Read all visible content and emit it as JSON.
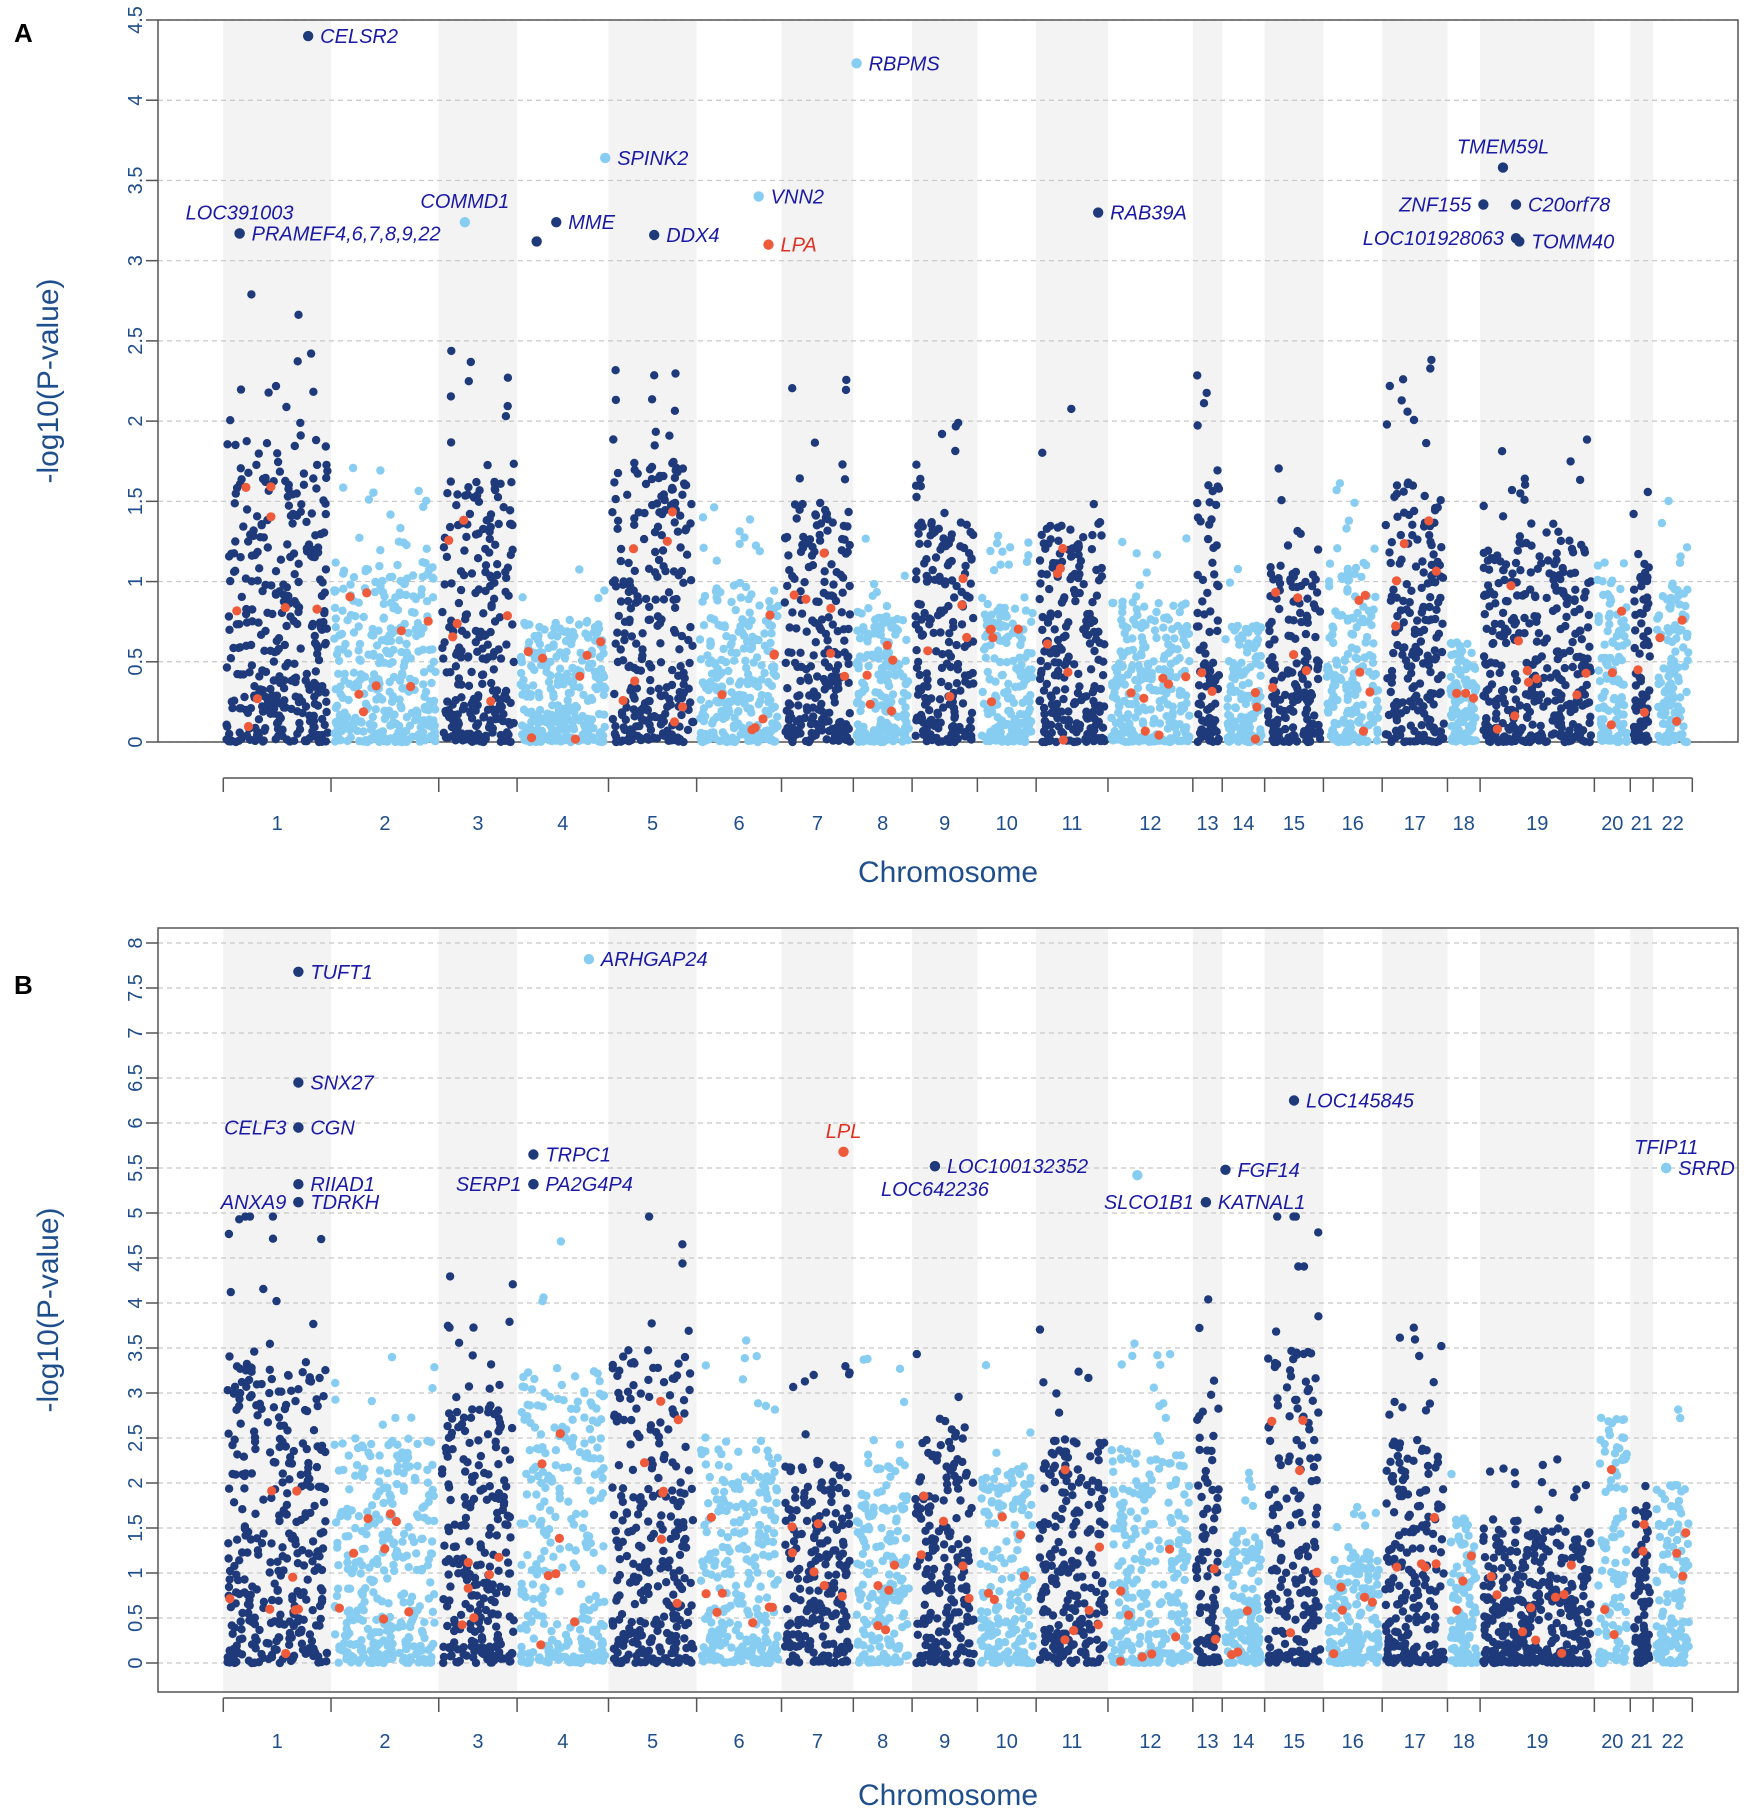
{
  "colors": {
    "dark": "#1f3a7a",
    "light": "#87cdf2",
    "highlight": "#ee5a3a",
    "label_blue": "#1a1aa6",
    "label_red": "#e03020",
    "axis_text": "#1f4e8c",
    "band": "#f3f3f3",
    "grid": "#c8c8c8"
  },
  "chart_data": [
    {
      "type": "scatter",
      "panel": "A",
      "xlabel": "Chromosome",
      "ylabel": "-log10(P-value)",
      "ylim": [
        0,
        4.5
      ],
      "yticks": [
        "0",
        "0.5",
        "1",
        "1.5",
        "2",
        "2.5",
        "3",
        "3.5",
        "4",
        "4.5"
      ],
      "grid": true,
      "chromosomes": [
        "1",
        "2",
        "3",
        "4",
        "5",
        "6",
        "7",
        "8",
        "9",
        "10",
        "11",
        "12",
        "13",
        "14",
        "15",
        "16",
        "17",
        "18",
        "19",
        "20",
        "21",
        "22"
      ],
      "chrom_ranges": [
        [
          1,
          2.65
        ],
        [
          2.65,
          4.3
        ],
        [
          4.3,
          5.5
        ],
        [
          5.5,
          6.9
        ],
        [
          6.9,
          8.25
        ],
        [
          8.25,
          9.55
        ],
        [
          9.55,
          10.65
        ],
        [
          10.65,
          11.55
        ],
        [
          11.55,
          12.55
        ],
        [
          12.55,
          13.45
        ],
        [
          13.45,
          14.55
        ],
        [
          14.55,
          15.85
        ],
        [
          15.85,
          16.3
        ],
        [
          16.3,
          16.95
        ],
        [
          16.95,
          17.85
        ],
        [
          17.85,
          18.75
        ],
        [
          18.75,
          19.75
        ],
        [
          19.75,
          20.25
        ],
        [
          20.25,
          22.0
        ],
        [
          22.0,
          22.55
        ],
        [
          22.55,
          22.9
        ],
        [
          22.9,
          23.5
        ]
      ],
      "tick_positions": [
        1,
        2.65,
        4.3,
        5.5,
        6.9,
        8.25,
        9.55,
        10.65,
        11.55,
        12.55,
        13.45,
        14.55,
        15.85,
        16.3,
        16.95,
        17.85,
        18.75,
        19.75,
        20.25,
        22.0,
        22.55,
        22.9,
        23.5
      ],
      "cluster_levels": [
        1.5,
        0.9,
        1.3,
        0.6,
        1.4,
        0.8,
        1.2,
        0.7,
        1.1,
        0.7,
        1.1,
        0.7,
        1.3,
        0.6,
        0.9,
        0.9,
        1.3,
        0.5,
        1.0,
        0.9,
        0.9,
        0.8
      ],
      "annotations": [
        {
          "gene": "CELSR2",
          "x": 2.3,
          "y": 4.4,
          "color": "dark",
          "label_color": "blue",
          "anchor": "right"
        },
        {
          "gene": "RBPMS",
          "x": 10.7,
          "y": 4.23,
          "color": "light",
          "label_color": "blue",
          "anchor": "right"
        },
        {
          "gene": "SPINK2",
          "x": 6.85,
          "y": 3.64,
          "color": "light",
          "label_color": "blue",
          "anchor": "right"
        },
        {
          "gene": "VNN2",
          "x": 9.2,
          "y": 3.4,
          "color": "light",
          "label_color": "blue",
          "anchor": "right"
        },
        {
          "gene": "LPA",
          "x": 9.35,
          "y": 3.1,
          "color": "highlight",
          "label_color": "red",
          "anchor": "right"
        },
        {
          "gene": "MME",
          "x": 6.1,
          "y": 3.24,
          "color": "dark",
          "label_color": "blue",
          "anchor": "right"
        },
        {
          "gene": "",
          "x": 5.8,
          "y": 3.12,
          "color": "dark",
          "label_color": "blue",
          "anchor": "right"
        },
        {
          "gene": "DDX4",
          "x": 7.6,
          "y": 3.16,
          "color": "dark",
          "label_color": "blue",
          "anchor": "right"
        },
        {
          "gene": "COMMD1",
          "x": 4.7,
          "y": 3.24,
          "color": "light",
          "label_color": "blue",
          "anchor": "above"
        },
        {
          "gene": "LOC391003",
          "x": 1.25,
          "y": 3.17,
          "color": "dark",
          "label_color": "blue",
          "anchor": "above"
        },
        {
          "gene": "PRAMEF4,6,7,8,9,22",
          "x": 1.25,
          "y": 3.17,
          "color": "dark",
          "label_color": "blue",
          "anchor": "right"
        },
        {
          "gene": "RAB39A",
          "x": 14.4,
          "y": 3.3,
          "color": "dark",
          "label_color": "blue",
          "anchor": "right"
        },
        {
          "gene": "TMEM59L",
          "x": 20.6,
          "y": 3.58,
          "color": "dark",
          "label_color": "blue",
          "anchor": "above"
        },
        {
          "gene": "ZNF155",
          "x": 20.3,
          "y": 3.35,
          "color": "dark",
          "label_color": "blue",
          "anchor": "left"
        },
        {
          "gene": "C20orf78",
          "x": 20.8,
          "y": 3.35,
          "color": "dark",
          "label_color": "blue",
          "anchor": "right"
        },
        {
          "gene": "LOC101928063",
          "x": 20.8,
          "y": 3.14,
          "color": "dark",
          "label_color": "blue",
          "anchor": "left"
        },
        {
          "gene": "TOMM40",
          "x": 20.85,
          "y": 3.12,
          "color": "dark",
          "label_color": "blue",
          "anchor": "right"
        }
      ]
    },
    {
      "type": "scatter",
      "panel": "B",
      "xlabel": "Chromosome",
      "ylabel": "-log10(P-value)",
      "ylim": [
        0,
        8
      ],
      "yticks": [
        "0",
        "0.5",
        "1",
        "1.5",
        "2",
        "2.5",
        "3",
        "3.5",
        "4",
        "4.5",
        "5",
        "5.5",
        "6",
        "6.5",
        "7",
        "7.5",
        "8"
      ],
      "grid": true,
      "chromosomes": [
        "1",
        "2",
        "3",
        "4",
        "5",
        "6",
        "7",
        "8",
        "9",
        "10",
        "11",
        "12",
        "13",
        "14",
        "15",
        "16",
        "17",
        "18",
        "19",
        "20",
        "21",
        "22"
      ],
      "chrom_ranges": [
        [
          1,
          2.65
        ],
        [
          2.65,
          4.3
        ],
        [
          4.3,
          5.5
        ],
        [
          5.5,
          6.9
        ],
        [
          6.9,
          8.25
        ],
        [
          8.25,
          9.55
        ],
        [
          9.55,
          10.65
        ],
        [
          10.65,
          11.55
        ],
        [
          11.55,
          12.55
        ],
        [
          12.55,
          13.45
        ],
        [
          13.45,
          14.55
        ],
        [
          14.55,
          15.85
        ],
        [
          15.85,
          16.3
        ],
        [
          16.3,
          16.95
        ],
        [
          16.95,
          17.85
        ],
        [
          17.85,
          18.75
        ],
        [
          18.75,
          19.75
        ],
        [
          19.75,
          20.25
        ],
        [
          20.25,
          22.0
        ],
        [
          22.0,
          22.55
        ],
        [
          22.55,
          22.9
        ],
        [
          22.9,
          23.5
        ]
      ],
      "tick_positions": [
        1,
        2.65,
        4.3,
        5.5,
        6.9,
        8.25,
        9.55,
        10.65,
        11.55,
        12.55,
        13.45,
        14.55,
        15.85,
        16.3,
        16.95,
        17.85,
        18.75,
        19.75,
        20.25,
        22.0,
        22.55,
        22.9,
        23.5
      ],
      "cluster_levels": [
        2.8,
        2.0,
        2.3,
        2.6,
        2.8,
        1.9,
        1.8,
        1.8,
        2.2,
        1.8,
        2.0,
        1.9,
        2.3,
        1.2,
        2.8,
        1.0,
        2.0,
        1.3,
        1.2,
        2.2,
        1.4,
        1.6
      ],
      "annotations": [
        {
          "gene": "TUFT1",
          "x": 2.15,
          "y": 7.68,
          "color": "dark",
          "label_color": "blue",
          "anchor": "right"
        },
        {
          "gene": "ARHGAP24",
          "x": 6.6,
          "y": 7.82,
          "color": "light",
          "label_color": "blue",
          "anchor": "right"
        },
        {
          "gene": "SNX27",
          "x": 2.15,
          "y": 6.45,
          "color": "dark",
          "label_color": "blue",
          "anchor": "right"
        },
        {
          "gene": "CELF3",
          "x": 2.15,
          "y": 5.95,
          "color": "dark",
          "label_color": "blue",
          "anchor": "left"
        },
        {
          "gene": "CGN",
          "x": 2.15,
          "y": 5.95,
          "color": "dark",
          "label_color": "blue",
          "anchor": "right"
        },
        {
          "gene": "RIIAD1",
          "x": 2.15,
          "y": 5.32,
          "color": "dark",
          "label_color": "blue",
          "anchor": "right"
        },
        {
          "gene": "ANXA9",
          "x": 2.15,
          "y": 5.12,
          "color": "dark",
          "label_color": "blue",
          "anchor": "left"
        },
        {
          "gene": "TDRKH",
          "x": 2.15,
          "y": 5.12,
          "color": "dark",
          "label_color": "blue",
          "anchor": "right"
        },
        {
          "gene": "TRPC1",
          "x": 5.75,
          "y": 5.65,
          "color": "dark",
          "label_color": "blue",
          "anchor": "right"
        },
        {
          "gene": "SERP1",
          "x": 5.75,
          "y": 5.32,
          "color": "dark",
          "label_color": "blue",
          "anchor": "left"
        },
        {
          "gene": "PA2G4P4",
          "x": 5.75,
          "y": 5.32,
          "color": "dark",
          "label_color": "blue",
          "anchor": "right"
        },
        {
          "gene": "LPL",
          "x": 10.5,
          "y": 5.68,
          "color": "highlight",
          "label_color": "red",
          "anchor": "above"
        },
        {
          "gene": "LOC100132352",
          "x": 11.9,
          "y": 5.52,
          "color": "dark",
          "label_color": "blue",
          "anchor": "right"
        },
        {
          "gene": "LOC642236",
          "x": 11.9,
          "y": 5.52,
          "color": "dark",
          "label_color": "blue",
          "anchor": "below"
        },
        {
          "gene": "",
          "x": 15.0,
          "y": 5.42,
          "color": "light",
          "label_color": "blue",
          "anchor": "right"
        },
        {
          "gene": "SLCO1B1",
          "x": 16.05,
          "y": 5.12,
          "color": "dark",
          "label_color": "blue",
          "anchor": "left"
        },
        {
          "gene": "KATNAL1",
          "x": 16.05,
          "y": 5.12,
          "color": "dark",
          "label_color": "blue",
          "anchor": "right"
        },
        {
          "gene": "FGF14",
          "x": 16.35,
          "y": 5.48,
          "color": "dark",
          "label_color": "blue",
          "anchor": "right"
        },
        {
          "gene": "LOC145845",
          "x": 17.4,
          "y": 6.25,
          "color": "dark",
          "label_color": "blue",
          "anchor": "right"
        },
        {
          "gene": "TFIP11",
          "x": 23.1,
          "y": 5.5,
          "color": "light",
          "label_color": "blue",
          "anchor": "above"
        },
        {
          "gene": "SRRD",
          "x": 23.1,
          "y": 5.5,
          "color": "light",
          "label_color": "blue",
          "anchor": "right"
        }
      ]
    }
  ]
}
